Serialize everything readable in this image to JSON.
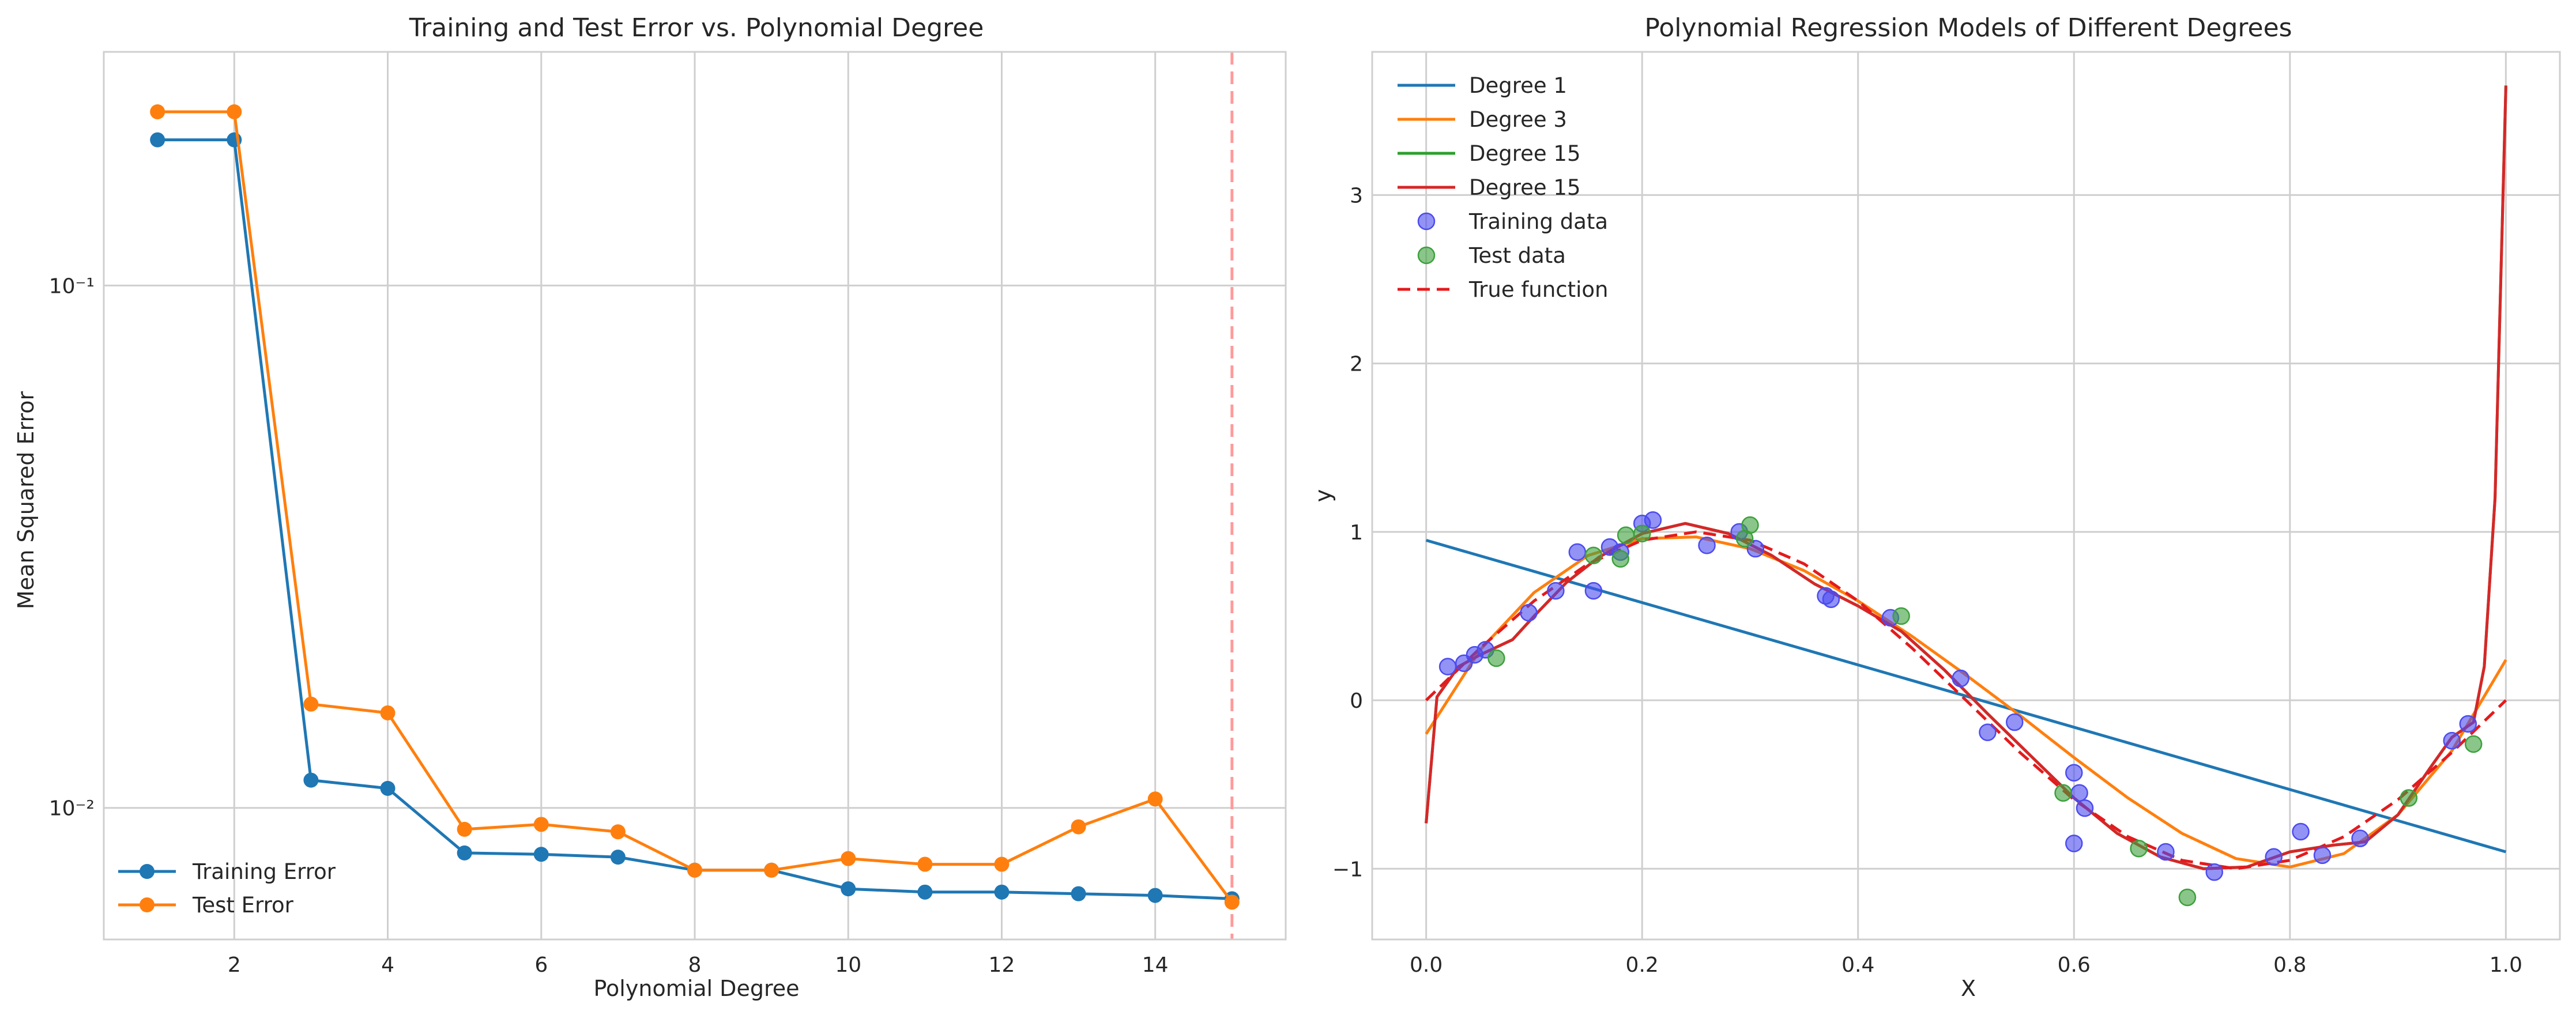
{
  "chart_data": [
    {
      "type": "line",
      "title": "Training and Test Error vs. Polynomial Degree",
      "xlabel": "Polynomial Degree",
      "ylabel": "Mean Squared Error",
      "xscale": "linear",
      "yscale": "log",
      "xlim": [
        0.3,
        15.7
      ],
      "ylim": [
        0.0056,
        0.28
      ],
      "xticks": [
        2,
        4,
        6,
        8,
        10,
        12,
        14
      ],
      "xtick_labels": [
        "2",
        "4",
        "6",
        "8",
        "10",
        "12",
        "14"
      ],
      "yticks": [
        0.01,
        0.1
      ],
      "ytick_labels": [
        "10⁻²",
        "10⁻¹"
      ],
      "grid": true,
      "legend_position": "lower-left",
      "x": [
        1,
        2,
        3,
        4,
        5,
        6,
        7,
        8,
        9,
        10,
        11,
        12,
        13,
        14,
        15
      ],
      "series": [
        {
          "name": "Training Error",
          "color": "#1f77b4",
          "marker": "circle",
          "values": [
            0.19,
            0.19,
            0.0113,
            0.0109,
            0.0082,
            0.00815,
            0.00805,
            0.0076,
            0.0076,
            0.007,
            0.0069,
            0.0069,
            0.00685,
            0.0068,
            0.0067
          ]
        },
        {
          "name": "Test Error",
          "color": "#ff7f0e",
          "marker": "circle",
          "values": [
            0.215,
            0.215,
            0.0158,
            0.0152,
            0.0091,
            0.0093,
            0.009,
            0.0076,
            0.0076,
            0.008,
            0.0078,
            0.0078,
            0.0092,
            0.0104,
            0.0066
          ]
        }
      ],
      "reference_line": {
        "orientation": "vertical",
        "x": 15,
        "style": "dashed",
        "color": "#ff9a9a"
      }
    },
    {
      "type": "line",
      "title": "Polynomial Regression Models of Different Degrees",
      "xlabel": "X",
      "ylabel": "y",
      "xlim": [
        -0.05,
        1.05
      ],
      "ylim": [
        -1.42,
        3.85
      ],
      "xticks": [
        0.0,
        0.2,
        0.4,
        0.6,
        0.8,
        1.0
      ],
      "xtick_labels": [
        "0.0",
        "0.2",
        "0.4",
        "0.6",
        "0.8",
        "1.0"
      ],
      "yticks": [
        -1,
        0,
        1,
        2,
        3
      ],
      "ytick_labels": [
        "−1",
        "0",
        "1",
        "2",
        "3"
      ],
      "grid": true,
      "legend_position": "upper-left",
      "series": [
        {
          "name": "Degree 1",
          "color": "#1f77b4",
          "style": "solid",
          "x": [
            0.0,
            1.0
          ],
          "y": [
            0.95,
            -0.9
          ]
        },
        {
          "name": "Degree 3",
          "color": "#ff7f0e",
          "style": "solid",
          "x": [
            0.0,
            0.05,
            0.1,
            0.15,
            0.2,
            0.25,
            0.3,
            0.35,
            0.4,
            0.45,
            0.5,
            0.55,
            0.6,
            0.65,
            0.7,
            0.75,
            0.8,
            0.85,
            0.9,
            0.95,
            1.0
          ],
          "y": [
            -0.2,
            0.3,
            0.64,
            0.86,
            0.96,
            0.97,
            0.9,
            0.77,
            0.59,
            0.38,
            0.15,
            -0.09,
            -0.34,
            -0.58,
            -0.79,
            -0.94,
            -0.99,
            -0.91,
            -0.68,
            -0.3,
            0.24
          ]
        },
        {
          "name": "Degree 15",
          "color": "#2ca02c",
          "style": "solid",
          "x": [
            0.0,
            0.01,
            0.03,
            0.05,
            0.08,
            0.1,
            0.13,
            0.16,
            0.2,
            0.24,
            0.28,
            0.32,
            0.36,
            0.4,
            0.44,
            0.48,
            0.52,
            0.56,
            0.6,
            0.64,
            0.68,
            0.72,
            0.76,
            0.8,
            0.84,
            0.87,
            0.9,
            0.93,
            0.95,
            0.97,
            0.98,
            0.99,
            1.0
          ],
          "y": [
            -0.73,
            0.02,
            0.2,
            0.27,
            0.36,
            0.5,
            0.7,
            0.85,
            0.99,
            1.05,
            0.99,
            0.86,
            0.69,
            0.56,
            0.41,
            0.18,
            -0.08,
            -0.33,
            -0.58,
            -0.79,
            -0.93,
            -1.0,
            -0.99,
            -0.9,
            -0.86,
            -0.84,
            -0.68,
            -0.4,
            -0.22,
            -0.13,
            0.2,
            1.2,
            3.65
          ]
        },
        {
          "name": "Degree 15",
          "color": "#d62728",
          "style": "solid",
          "x": [
            0.0,
            0.01,
            0.03,
            0.05,
            0.08,
            0.1,
            0.13,
            0.16,
            0.2,
            0.24,
            0.28,
            0.32,
            0.36,
            0.4,
            0.44,
            0.48,
            0.52,
            0.56,
            0.6,
            0.64,
            0.68,
            0.72,
            0.76,
            0.8,
            0.84,
            0.87,
            0.9,
            0.93,
            0.95,
            0.97,
            0.98,
            0.99,
            1.0
          ],
          "y": [
            -0.73,
            0.02,
            0.2,
            0.27,
            0.36,
            0.5,
            0.7,
            0.85,
            0.99,
            1.05,
            0.99,
            0.86,
            0.69,
            0.56,
            0.41,
            0.18,
            -0.08,
            -0.33,
            -0.58,
            -0.79,
            -0.93,
            -1.0,
            -0.99,
            -0.9,
            -0.86,
            -0.84,
            -0.68,
            -0.4,
            -0.22,
            -0.13,
            0.2,
            1.2,
            3.65
          ]
        },
        {
          "name": "True function",
          "color": "#e41a1c",
          "style": "dashed",
          "x": [
            0.0,
            0.05,
            0.1,
            0.15,
            0.2,
            0.25,
            0.3,
            0.35,
            0.4,
            0.45,
            0.5,
            0.55,
            0.6,
            0.65,
            0.7,
            0.75,
            0.8,
            0.85,
            0.9,
            0.95,
            1.0
          ],
          "y": [
            0.0,
            0.31,
            0.59,
            0.81,
            0.95,
            1.0,
            0.95,
            0.81,
            0.59,
            0.31,
            0.0,
            -0.31,
            -0.59,
            -0.81,
            -0.95,
            -1.0,
            -0.95,
            -0.81,
            -0.59,
            -0.31,
            0.0
          ]
        }
      ],
      "scatter": [
        {
          "name": "Training data",
          "color": "#4b4bf0",
          "x": [
            0.02,
            0.035,
            0.045,
            0.055,
            0.095,
            0.12,
            0.14,
            0.155,
            0.17,
            0.18,
            0.2,
            0.21,
            0.26,
            0.29,
            0.305,
            0.37,
            0.375,
            0.43,
            0.495,
            0.52,
            0.545,
            0.6,
            0.6,
            0.605,
            0.61,
            0.685,
            0.73,
            0.785,
            0.81,
            0.83,
            0.865,
            0.95,
            0.965
          ],
          "y": [
            0.2,
            0.22,
            0.27,
            0.3,
            0.52,
            0.65,
            0.88,
            0.65,
            0.91,
            0.88,
            1.05,
            1.07,
            0.92,
            1.0,
            0.9,
            0.62,
            0.6,
            0.49,
            0.13,
            -0.19,
            -0.13,
            -0.43,
            -0.85,
            -0.55,
            -0.64,
            -0.9,
            -1.02,
            -0.93,
            -0.78,
            -0.92,
            -0.82,
            -0.24,
            -0.14
          ]
        },
        {
          "name": "Test data",
          "color": "#3ca03c",
          "x": [
            0.065,
            0.155,
            0.18,
            0.185,
            0.2,
            0.295,
            0.3,
            0.44,
            0.59,
            0.66,
            0.705,
            0.91,
            0.97
          ],
          "y": [
            0.25,
            0.86,
            0.84,
            0.98,
            0.99,
            0.96,
            1.04,
            0.5,
            -0.55,
            -0.88,
            -1.17,
            -0.58,
            -0.26
          ]
        }
      ]
    }
  ]
}
